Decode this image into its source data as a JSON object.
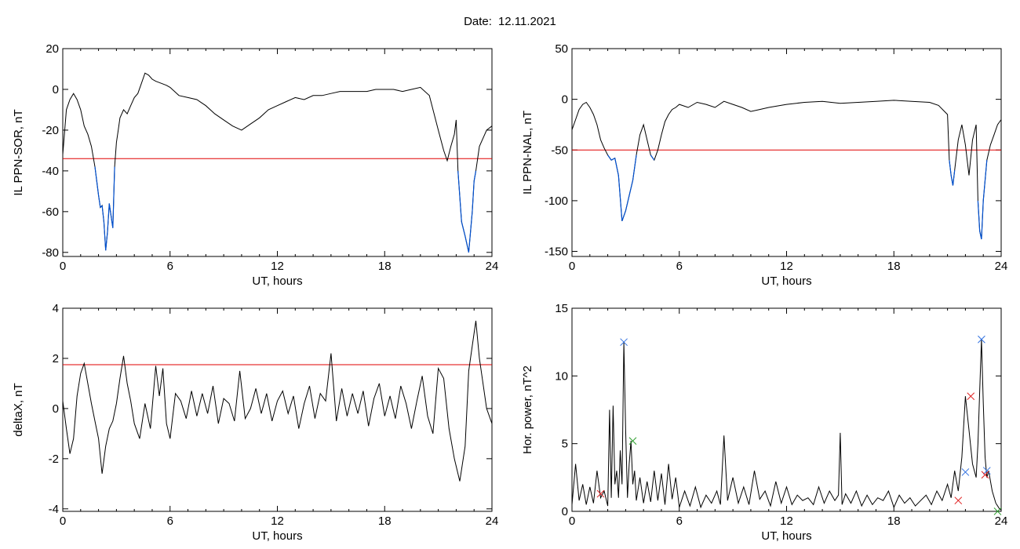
{
  "header": {
    "date_label": "Date:",
    "date_value": "12.11.2021"
  },
  "chart_data": [
    {
      "type": "line",
      "xlabel": "UT, hours",
      "ylabel": "IL PPN-SOR, nT",
      "xlim": [
        0,
        24
      ],
      "ylim": [
        -82,
        20
      ],
      "xticks": [
        0,
        6,
        12,
        18,
        24
      ],
      "yticks": [
        -80,
        -60,
        -40,
        -20,
        0,
        20
      ],
      "threshold": -34,
      "colors": {
        "line": "#000000",
        "below": "#0050d0",
        "threshold": "#e00000"
      },
      "series": [
        {
          "x": [
            0,
            0.2,
            0.4,
            0.6,
            0.8,
            1.0,
            1.2,
            1.4,
            1.6,
            1.8,
            1.9,
            2.0,
            2.1,
            2.2,
            2.3,
            2.4,
            2.5,
            2.6,
            2.7,
            2.8,
            2.9,
            3.0,
            3.1,
            3.2,
            3.4,
            3.6,
            3.8,
            4.0,
            4.2,
            4.4,
            4.6,
            4.8,
            5.0,
            5.2,
            5.5,
            5.8,
            6.0,
            6.5,
            7.0,
            7.5,
            8.0,
            8.5,
            9.0,
            9.5,
            10.0,
            10.5,
            11.0,
            11.5,
            12.0,
            12.5,
            13.0,
            13.5,
            14.0,
            14.5,
            15.0,
            15.5,
            16.0,
            16.5,
            17.0,
            17.5,
            18.0,
            18.5,
            19.0,
            19.5,
            20.0,
            20.5,
            21.0,
            21.3,
            21.5,
            21.7,
            21.9,
            22.0,
            22.1,
            22.3,
            22.5,
            22.7,
            22.9,
            23.0,
            23.1,
            23.3,
            23.5,
            23.7,
            24.0
          ],
          "y": [
            -32,
            -10,
            -5,
            -2,
            -5,
            -10,
            -18,
            -22,
            -28,
            -38,
            -45,
            -52,
            -58,
            -57,
            -65,
            -79,
            -70,
            -56,
            -62,
            -68,
            -38,
            -26,
            -20,
            -14,
            -10,
            -12,
            -8,
            -4,
            -2,
            3,
            8,
            7,
            5,
            4,
            3,
            2,
            1,
            -3,
            -4,
            -5,
            -8,
            -12,
            -15,
            -18,
            -20,
            -17,
            -14,
            -10,
            -8,
            -6,
            -4,
            -5,
            -3,
            -3,
            -2,
            -1,
            -1,
            -1,
            -1,
            0,
            0,
            0,
            -1,
            0,
            1,
            -3,
            -20,
            -30,
            -35,
            -28,
            -22,
            -15,
            -40,
            -65,
            -72,
            -80,
            -60,
            -45,
            -40,
            -28,
            -24,
            -20,
            -18
          ]
        }
      ]
    },
    {
      "type": "line",
      "xlabel": "UT, hours",
      "ylabel": "IL PPN-NAL, nT",
      "xlim": [
        0,
        24
      ],
      "ylim": [
        -155,
        50
      ],
      "xticks": [
        0,
        6,
        12,
        18,
        24
      ],
      "yticks": [
        -150,
        -100,
        -50,
        0,
        50
      ],
      "threshold": -50,
      "colors": {
        "line": "#000000",
        "below": "#0050d0",
        "threshold": "#e00000"
      },
      "series": [
        {
          "x": [
            0,
            0.2,
            0.4,
            0.6,
            0.8,
            1.0,
            1.2,
            1.4,
            1.6,
            1.8,
            2.0,
            2.2,
            2.4,
            2.6,
            2.8,
            3.0,
            3.2,
            3.4,
            3.6,
            3.8,
            4.0,
            4.2,
            4.4,
            4.6,
            4.8,
            5.0,
            5.2,
            5.4,
            5.6,
            5.8,
            6.0,
            6.5,
            7.0,
            7.5,
            8.0,
            8.5,
            9.0,
            9.5,
            10.0,
            10.5,
            11.0,
            12.0,
            13.0,
            14.0,
            15.0,
            16.0,
            17.0,
            18.0,
            19.0,
            20.0,
            20.5,
            21.0,
            21.1,
            21.2,
            21.3,
            21.4,
            21.6,
            21.8,
            22.0,
            22.2,
            22.4,
            22.6,
            22.7,
            22.8,
            22.9,
            23.0,
            23.2,
            23.4,
            23.6,
            23.8,
            24.0
          ],
          "y": [
            -30,
            -20,
            -10,
            -5,
            -3,
            -8,
            -15,
            -25,
            -40,
            -48,
            -55,
            -60,
            -58,
            -75,
            -120,
            -110,
            -95,
            -80,
            -55,
            -35,
            -25,
            -40,
            -55,
            -60,
            -50,
            -35,
            -22,
            -15,
            -10,
            -8,
            -5,
            -8,
            -3,
            -5,
            -8,
            -2,
            -5,
            -8,
            -12,
            -10,
            -8,
            -5,
            -3,
            -2,
            -4,
            -3,
            -2,
            -1,
            -2,
            -3,
            -6,
            -15,
            -60,
            -75,
            -85,
            -70,
            -40,
            -25,
            -45,
            -75,
            -40,
            -25,
            -100,
            -130,
            -138,
            -100,
            -60,
            -45,
            -35,
            -25,
            -20
          ]
        }
      ]
    },
    {
      "type": "line",
      "xlabel": "UT, hours",
      "ylabel": "deltaX, nT",
      "xlim": [
        0,
        24
      ],
      "ylim": [
        -4.1,
        4
      ],
      "xticks": [
        0,
        6,
        12,
        18,
        24
      ],
      "yticks": [
        -4,
        -2,
        0,
        2,
        4
      ],
      "threshold": 1.75,
      "colors": {
        "line": "#000000",
        "threshold": "#e00000"
      },
      "series": [
        {
          "x": [
            0,
            0.2,
            0.4,
            0.6,
            0.8,
            1.0,
            1.2,
            1.4,
            1.6,
            1.8,
            2.0,
            2.2,
            2.4,
            2.6,
            2.8,
            3.0,
            3.2,
            3.4,
            3.6,
            3.8,
            4.0,
            4.3,
            4.6,
            4.9,
            5.2,
            5.4,
            5.6,
            5.8,
            6.0,
            6.3,
            6.6,
            6.9,
            7.2,
            7.5,
            7.8,
            8.1,
            8.4,
            8.7,
            9.0,
            9.3,
            9.6,
            9.9,
            10.2,
            10.5,
            10.8,
            11.1,
            11.4,
            11.7,
            12.0,
            12.3,
            12.6,
            12.9,
            13.2,
            13.5,
            13.8,
            14.1,
            14.4,
            14.7,
            15.0,
            15.3,
            15.6,
            15.9,
            16.2,
            16.5,
            16.8,
            17.1,
            17.4,
            17.7,
            18.0,
            18.3,
            18.6,
            18.9,
            19.2,
            19.5,
            19.8,
            20.1,
            20.4,
            20.7,
            21.0,
            21.3,
            21.6,
            21.9,
            22.2,
            22.5,
            22.7,
            22.9,
            23.1,
            23.3,
            23.5,
            23.7,
            24.0
          ],
          "y": [
            0.3,
            -0.8,
            -1.8,
            -1.2,
            0.5,
            1.4,
            1.8,
            1.0,
            0.2,
            -0.5,
            -1.2,
            -2.6,
            -1.5,
            -0.8,
            -0.5,
            0.2,
            1.2,
            2.1,
            1.0,
            0.3,
            -0.6,
            -1.2,
            0.2,
            -0.8,
            1.7,
            0.5,
            1.6,
            -0.6,
            -1.2,
            0.6,
            0.3,
            -0.4,
            0.7,
            -0.3,
            0.6,
            -0.2,
            0.9,
            -0.6,
            0.4,
            0.2,
            -0.5,
            1.5,
            -0.4,
            0.0,
            0.8,
            -0.2,
            0.6,
            -0.5,
            0.3,
            0.7,
            -0.2,
            0.5,
            -0.8,
            0.2,
            0.9,
            -0.4,
            0.6,
            0.3,
            2.2,
            -0.5,
            0.8,
            -0.3,
            0.6,
            -0.2,
            0.7,
            -0.7,
            0.4,
            1.0,
            -0.3,
            0.5,
            -0.4,
            0.9,
            0.2,
            -0.8,
            0.3,
            1.3,
            -0.3,
            -1.0,
            1.6,
            1.2,
            -0.8,
            -2.0,
            -2.9,
            -1.5,
            1.5,
            2.5,
            3.5,
            2.0,
            1.0,
            0.0,
            -0.6
          ]
        }
      ]
    },
    {
      "type": "line",
      "xlabel": "UT, hours",
      "ylabel": "Hor. power, nT^2",
      "xlim": [
        0,
        24
      ],
      "ylim": [
        0,
        15
      ],
      "xticks": [
        0,
        6,
        12,
        18,
        24
      ],
      "yticks": [
        0,
        5,
        10,
        15
      ],
      "colors": {
        "line": "#000000",
        "blue": "#3070e0",
        "red": "#e02020",
        "green": "#30a030"
      },
      "series": [
        {
          "x": [
            0,
            0.2,
            0.4,
            0.6,
            0.8,
            1.0,
            1.2,
            1.4,
            1.6,
            1.8,
            2.0,
            2.1,
            2.2,
            2.3,
            2.4,
            2.5,
            2.6,
            2.7,
            2.8,
            2.9,
            3.0,
            3.1,
            3.2,
            3.3,
            3.4,
            3.5,
            3.6,
            3.8,
            4.0,
            4.2,
            4.4,
            4.6,
            4.8,
            5.0,
            5.2,
            5.4,
            5.6,
            5.8,
            6.0,
            6.3,
            6.6,
            6.9,
            7.2,
            7.5,
            7.8,
            8.1,
            8.3,
            8.5,
            8.7,
            9.0,
            9.3,
            9.6,
            9.9,
            10.2,
            10.5,
            10.8,
            11.1,
            11.4,
            11.7,
            12.0,
            12.3,
            12.6,
            12.9,
            13.2,
            13.5,
            13.8,
            14.1,
            14.4,
            14.7,
            14.9,
            15.0,
            15.1,
            15.3,
            15.6,
            15.9,
            16.2,
            16.5,
            16.8,
            17.1,
            17.4,
            17.7,
            18.0,
            18.3,
            18.6,
            18.9,
            19.2,
            19.5,
            19.8,
            20.1,
            20.4,
            20.7,
            21.0,
            21.2,
            21.4,
            21.6,
            21.8,
            22.0,
            22.2,
            22.4,
            22.6,
            22.7,
            22.8,
            22.9,
            23.0,
            23.1,
            23.2,
            23.3,
            23.5,
            23.7,
            23.9,
            24.0
          ],
          "y": [
            0.5,
            3.5,
            0.8,
            2.0,
            0.5,
            1.8,
            0.6,
            3.0,
            1.0,
            1.5,
            0.4,
            7.5,
            1.0,
            7.8,
            2.0,
            3.0,
            1.0,
            4.5,
            2.0,
            12.5,
            6.0,
            1.0,
            3.5,
            5.2,
            2.0,
            3.0,
            0.8,
            2.5,
            0.6,
            2.2,
            0.7,
            3.0,
            0.8,
            2.8,
            0.5,
            3.5,
            0.9,
            2.5,
            0.3,
            1.5,
            0.4,
            1.8,
            0.3,
            1.2,
            0.6,
            1.5,
            0.5,
            5.6,
            0.8,
            2.5,
            0.6,
            1.8,
            0.5,
            3.0,
            0.9,
            1.5,
            0.4,
            2.2,
            0.6,
            1.8,
            0.5,
            1.2,
            0.8,
            1.0,
            0.5,
            1.8,
            0.6,
            1.5,
            0.8,
            1.2,
            5.8,
            0.5,
            1.3,
            0.6,
            1.5,
            0.4,
            1.2,
            0.5,
            1.0,
            0.8,
            1.5,
            0.3,
            1.2,
            0.6,
            1.0,
            0.4,
            0.8,
            1.2,
            0.5,
            1.5,
            0.8,
            2.0,
            1.0,
            3.0,
            1.5,
            4.0,
            8.5,
            6.0,
            3.5,
            2.5,
            5.0,
            9.0,
            12.7,
            8.0,
            4.0,
            2.5,
            3.0,
            1.5,
            0.6,
            0.2,
            0.1
          ]
        }
      ],
      "markers": [
        {
          "x": 2.9,
          "y": 12.5,
          "color": "blue"
        },
        {
          "x": 22.9,
          "y": 12.7,
          "color": "blue"
        },
        {
          "x": 22.0,
          "y": 2.9,
          "color": "blue"
        },
        {
          "x": 23.2,
          "y": 3.0,
          "color": "blue"
        },
        {
          "x": 22.3,
          "y": 8.5,
          "color": "red"
        },
        {
          "x": 21.6,
          "y": 0.8,
          "color": "red"
        },
        {
          "x": 23.1,
          "y": 2.7,
          "color": "red"
        },
        {
          "x": 1.6,
          "y": 1.3,
          "color": "red"
        },
        {
          "x": 3.4,
          "y": 5.2,
          "color": "green"
        },
        {
          "x": 23.8,
          "y": 0.0,
          "color": "green"
        }
      ]
    }
  ]
}
